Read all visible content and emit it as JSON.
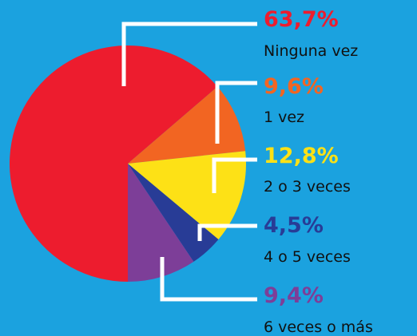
{
  "chart_data": {
    "type": "pie",
    "categories": [
      "Ninguna vez",
      "1 vez",
      "2 o 3 veces",
      "4 o 5 veces",
      "6 veces o más"
    ],
    "values": [
      63.7,
      9.6,
      12.8,
      4.5,
      9.4
    ],
    "value_labels": [
      "63,7%",
      "9,6%",
      "12,8%",
      "4,5%",
      "9,4%"
    ],
    "colors": [
      "#ed1c2e",
      "#f26522",
      "#fde116",
      "#283c96",
      "#7d3e98"
    ]
  }
}
